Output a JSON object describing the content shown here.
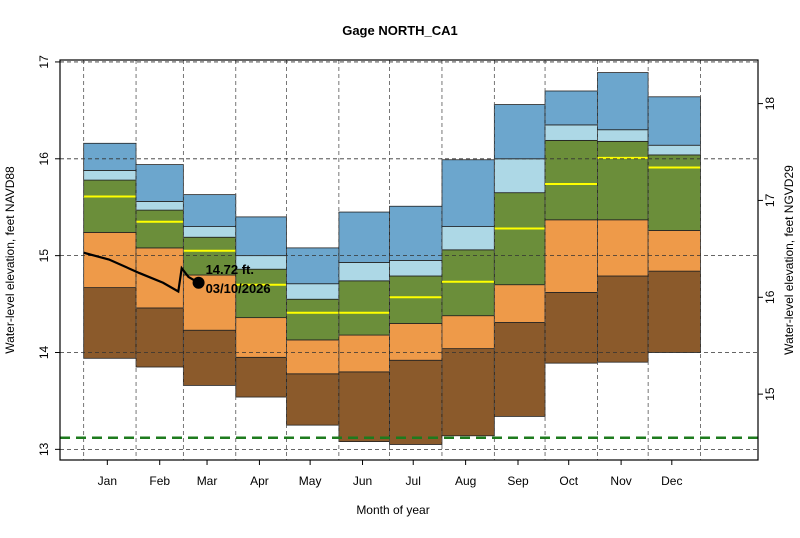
{
  "chart_data": {
    "type": "area",
    "title": "Gage NORTH_CA1",
    "xlabel": "Month of year",
    "ylabel": "Water-level elevation, feet NAVD88",
    "ylabel_right": "Water-level elevation, feet NGVD29",
    "ylim": [
      12.89,
      17.02
    ],
    "xlim_day_of_year": [
      -13,
      400
    ],
    "right_axis_offset": 1.43,
    "yticks": [
      13,
      14,
      15,
      16,
      17
    ],
    "yticks_right": [
      15,
      16,
      17,
      18
    ],
    "month_labels": [
      "Jan",
      "Feb",
      "Mar",
      "Apr",
      "May",
      "Jun",
      "Jul",
      "Aug",
      "Sep",
      "Oct",
      "Nov",
      "Dec"
    ],
    "month_start_doy": [
      1,
      32,
      60,
      91,
      121,
      152,
      182,
      213,
      244,
      274,
      305,
      335,
      366
    ],
    "month_mid_doy": [
      15,
      46,
      74,
      105,
      135,
      166,
      196,
      227,
      258,
      288,
      319,
      349
    ],
    "band_names": [
      "min",
      "p10",
      "p25",
      "p75",
      "p90",
      "max"
    ],
    "bands": {
      "min": [
        13.94,
        13.85,
        13.66,
        13.54,
        13.25,
        13.08,
        13.05,
        13.14,
        13.34,
        13.89,
        13.9,
        14.0
      ],
      "p10": [
        14.67,
        14.46,
        14.23,
        13.95,
        13.78,
        13.8,
        13.92,
        14.04,
        14.31,
        14.62,
        14.79,
        14.84
      ],
      "p25": [
        15.24,
        15.08,
        14.8,
        14.36,
        14.13,
        14.18,
        14.3,
        14.38,
        14.7,
        15.37,
        15.37,
        15.26
      ],
      "median": [
        15.61,
        15.35,
        15.05,
        14.7,
        14.41,
        14.41,
        14.57,
        14.73,
        15.28,
        15.74,
        16.01,
        15.91
      ],
      "p75": [
        15.78,
        15.47,
        15.19,
        14.86,
        14.55,
        14.74,
        14.79,
        15.06,
        15.65,
        16.19,
        16.18,
        16.04
      ],
      "p90": [
        15.88,
        15.56,
        15.3,
        15.0,
        14.71,
        14.93,
        14.95,
        15.3,
        16.0,
        16.35,
        16.3,
        16.14
      ],
      "max": [
        16.16,
        15.94,
        15.63,
        15.4,
        15.08,
        15.45,
        15.51,
        15.99,
        16.56,
        16.7,
        16.89,
        16.64
      ]
    },
    "band_colors": [
      "#8B5A2B",
      "#EE9A49",
      "#6B8E3A",
      "#ADD8E6",
      "#6CA6CD"
    ],
    "median_color": "#FFFF00",
    "current_series": {
      "doy": [
        1,
        16,
        34,
        48,
        57,
        59,
        63,
        69
      ],
      "values": [
        15.03,
        14.96,
        14.82,
        14.72,
        14.63,
        14.87,
        14.78,
        14.72
      ]
    },
    "current_point": {
      "doy": 69,
      "value": 14.72,
      "label_value": "14.72 ft.",
      "label_date": "03/10/2026"
    },
    "reference_line": {
      "value": 13.12,
      "color": "#1E7B1E"
    }
  }
}
